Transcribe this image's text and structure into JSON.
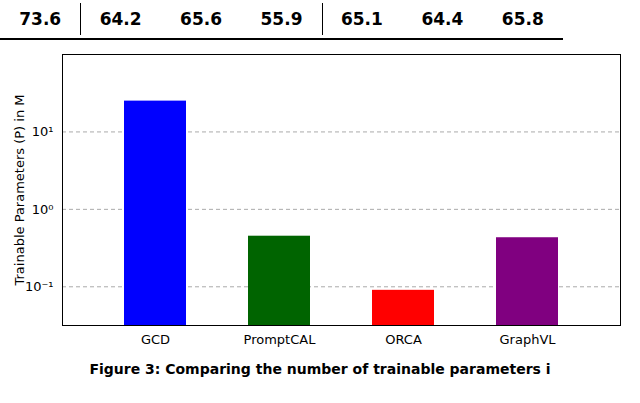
{
  "chart_data": {
    "type": "bar",
    "annotations": [
      "73.6",
      "64.2",
      "65.6",
      "55.9",
      "65.1",
      "64.4",
      "65.8"
    ],
    "categories": [
      "GCD",
      "PromptCAL",
      "ORCA",
      "GraphVL"
    ],
    "values": [
      25.0,
      0.45,
      0.09,
      0.43
    ],
    "colors": [
      "#0000ff",
      "#006400",
      "#ff0000",
      "#800080"
    ],
    "ylabel": "Trainable Parameters (P) in M",
    "log": "y",
    "ylim": [
      0.03162277660168379,
      100.0
    ],
    "yticks": [
      {
        "value": 0.1,
        "label": "10⁻¹"
      },
      {
        "value": 1.0,
        "label": "10⁰"
      },
      {
        "value": 10.0,
        "label": "10¹"
      }
    ],
    "grid": true,
    "caption": "Figure 3: Comparing the number of trainable parameters i"
  }
}
